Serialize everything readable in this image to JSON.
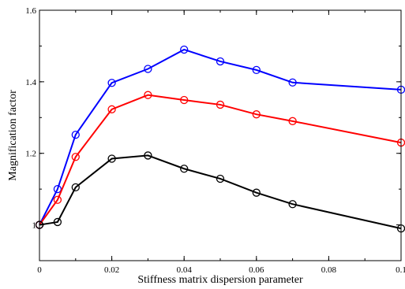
{
  "chart_data": {
    "type": "line",
    "title": "",
    "xlabel": "Stiffness matrix dispersion parameter",
    "ylabel": "Magnification factor",
    "xlim": [
      0,
      0.1
    ],
    "ylim": [
      0.9,
      1.6
    ],
    "xticks": [
      0,
      0.02,
      0.04,
      0.06,
      0.08,
      0.1
    ],
    "xtick_labels": [
      "0",
      "0.02",
      "0.04",
      "0.06",
      "0.08",
      "0.1"
    ],
    "yticks": [
      1.0,
      1.2,
      1.4,
      1.6
    ],
    "ytick_labels": [
      "1",
      "1.2",
      "1.4",
      "1.6"
    ],
    "grid": false,
    "legend": "none",
    "x": [
      0,
      0.005,
      0.01,
      0.02,
      0.03,
      0.04,
      0.05,
      0.06,
      0.07,
      0.1
    ],
    "series": [
      {
        "color": "#0000ff",
        "marker": "circle",
        "values": [
          1.0,
          1.1,
          1.252,
          1.397,
          1.436,
          1.49,
          1.457,
          1.433,
          1.398,
          1.378
        ]
      },
      {
        "color": "#ff0000",
        "marker": "circle",
        "values": [
          1.0,
          1.07,
          1.19,
          1.323,
          1.363,
          1.349,
          1.336,
          1.309,
          1.29,
          1.23
        ]
      },
      {
        "color": "#000000",
        "marker": "circle",
        "values": [
          1.0,
          1.008,
          1.105,
          1.185,
          1.194,
          1.157,
          1.129,
          1.09,
          1.058,
          0.99
        ]
      }
    ]
  }
}
